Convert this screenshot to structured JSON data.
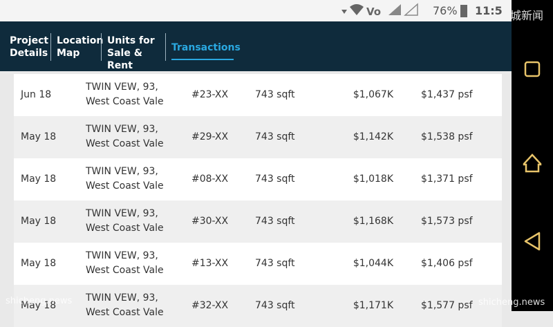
{
  "status_bar": {
    "battery": "76%",
    "time": "11:5",
    "watermark": "城新闻"
  },
  "tabs": [
    "Project Details",
    "Location Map",
    "Units for Sale & Rent",
    "Transactions"
  ],
  "active_tab": 3,
  "table": {
    "rows": [
      [
        "Jun 18",
        "TWIN VEW, 93,",
        "West Coast Vale",
        "#23-XX",
        "743 sqft",
        "$1,067K",
        "$1,437 psf"
      ],
      [
        "May 18",
        "TWIN VEW, 93,",
        "West Coast Vale",
        "#29-XX",
        "743 sqft",
        "$1,142K",
        "$1,538 psf"
      ],
      [
        "May 18",
        "TWIN VEW, 93,",
        "West Coast Vale",
        "#08-XX",
        "743 sqft",
        "$1,018K",
        "$1,371 psf"
      ],
      [
        "May 18",
        "TWIN VEW, 93,",
        "West Coast Vale",
        "#30-XX",
        "743 sqft",
        "$1,168K",
        "$1,573 psf"
      ],
      [
        "May 18",
        "TWIN VEW, 93,",
        "West Coast Vale",
        "#13-XX",
        "743 sqft",
        "$1,044K",
        "$1,406 psf"
      ],
      [
        "May 18",
        "TWIN VEW, 93,",
        "West Coast Vale",
        "#32-XX",
        "743 sqft",
        "$1,171K",
        "$1,577 psf"
      ]
    ]
  },
  "watermarks": [
    "shicheng.news",
    "shicheng.news"
  ]
}
